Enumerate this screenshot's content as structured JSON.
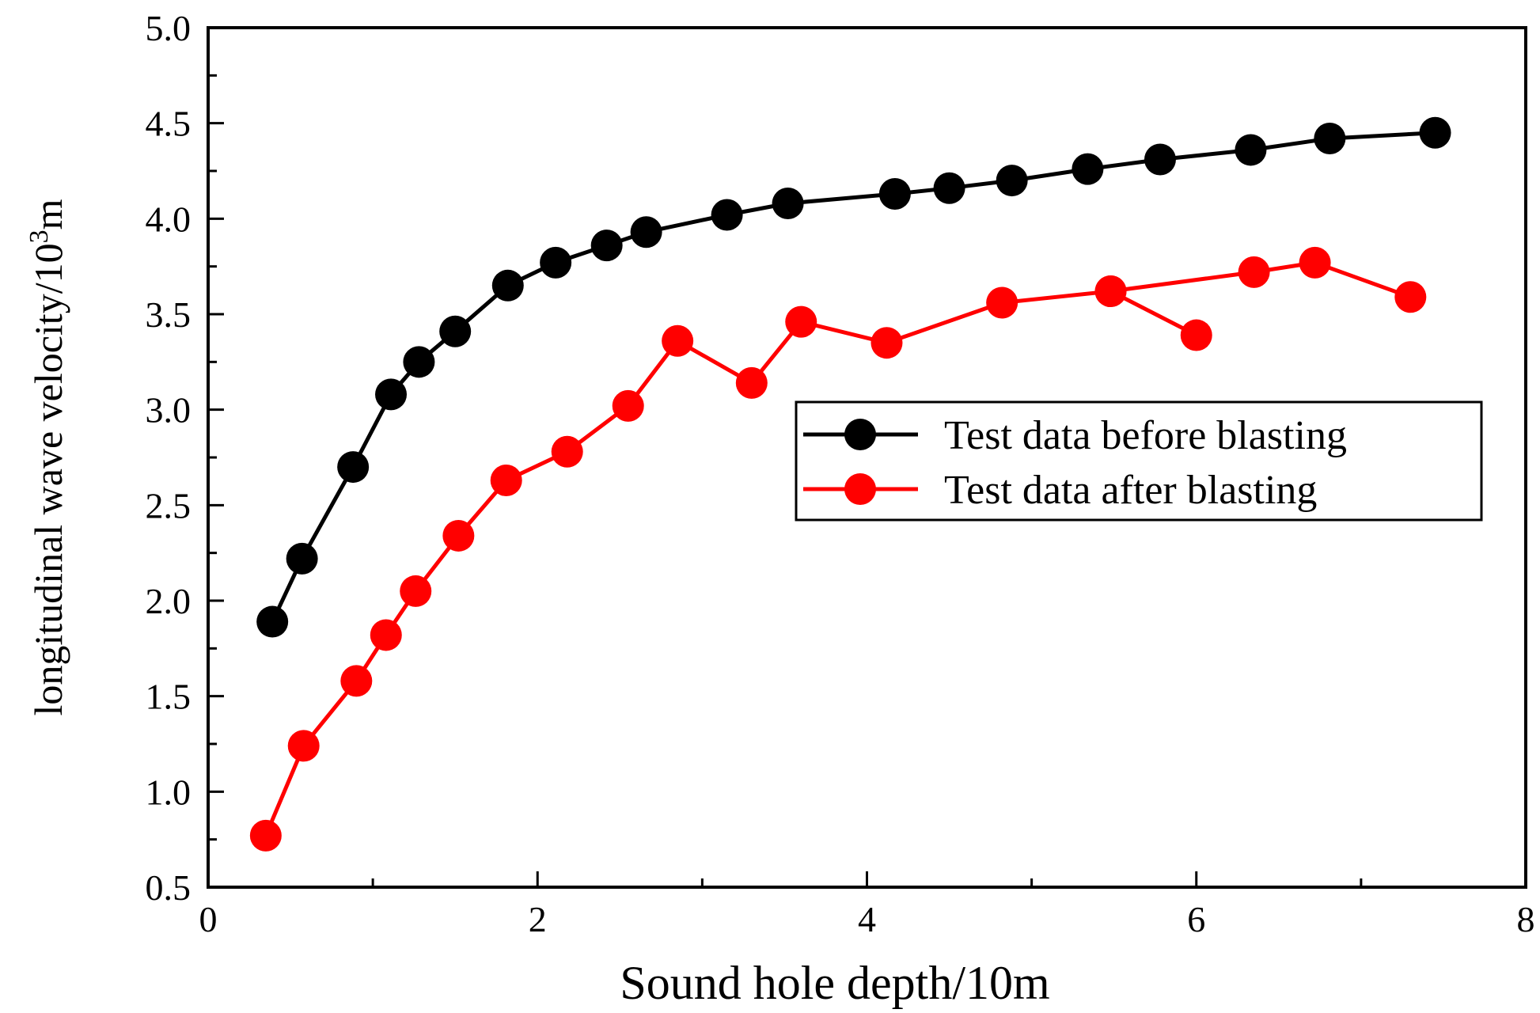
{
  "chart_data": {
    "type": "line",
    "title": "",
    "xlabel": "Sound hole depth/10m",
    "ylabel": "longitudinal wave velocity/10",
    "ylabel_sup": "3",
    "ylabel_suffix": "m",
    "xlim": [
      0,
      8
    ],
    "ylim": [
      0.5,
      5.0
    ],
    "xticks": [
      0,
      2,
      4,
      6,
      8
    ],
    "xtick_labels": [
      "0",
      "2",
      "4",
      "6",
      "8"
    ],
    "yticks": [
      0.5,
      1.0,
      1.5,
      2.0,
      2.5,
      3.0,
      3.5,
      4.0,
      4.5,
      5.0
    ],
    "ytick_labels": [
      "0.5",
      "1.0",
      "1.5",
      "2.0",
      "2.5",
      "3.0",
      "3.5",
      "4.0",
      "4.5",
      "5.0"
    ],
    "grid": false,
    "legend_position": "center-right",
    "series": [
      {
        "name": "Test data before blasting",
        "color": "#000000",
        "x": [
          0.39,
          0.57,
          0.88,
          1.11,
          1.28,
          1.5,
          1.82,
          2.11,
          2.42,
          2.66,
          3.15,
          3.52,
          4.17,
          4.5,
          4.88,
          5.34,
          5.78,
          6.33,
          6.81,
          7.45
        ],
        "y": [
          1.89,
          2.22,
          2.7,
          3.08,
          3.25,
          3.41,
          3.65,
          3.77,
          3.86,
          3.93,
          4.02,
          4.08,
          4.13,
          4.16,
          4.2,
          4.26,
          4.31,
          4.36,
          4.42,
          4.45
        ]
      },
      {
        "name": "Test data after blasting",
        "color": "#ff0000",
        "x": [
          0.35,
          0.58,
          0.9,
          1.08,
          1.26,
          1.52,
          1.81,
          2.18,
          2.55,
          2.85,
          3.3,
          3.6,
          4.12,
          4.82,
          5.48,
          6.0,
          5.48,
          6.35,
          6.72,
          7.3
        ],
        "y": [
          0.77,
          1.24,
          1.58,
          1.82,
          2.05,
          2.34,
          2.63,
          2.78,
          3.02,
          3.36,
          3.14,
          3.46,
          3.35,
          3.56,
          3.62,
          3.39,
          3.62,
          3.72,
          3.77,
          3.59
        ]
      }
    ]
  }
}
